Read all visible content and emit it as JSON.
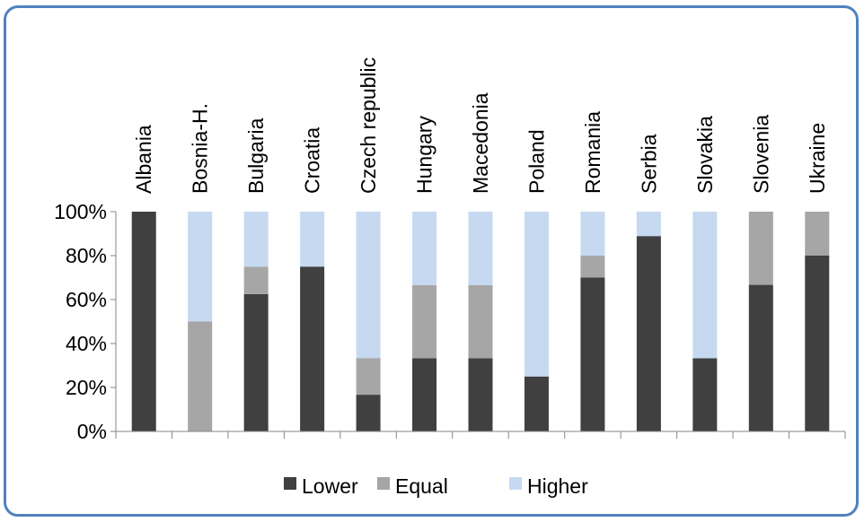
{
  "chart_data": {
    "type": "bar",
    "stacked": true,
    "percent": true,
    "categories": [
      "Albania",
      "Bosnia-H.",
      "Bulgaria",
      "Croatia",
      "Czech republic",
      "Hungary",
      "Macedonia",
      "Poland",
      "Romania",
      "Serbia",
      "Slovakia",
      "Slovenia",
      "Ukraine"
    ],
    "series": [
      {
        "name": "Lower",
        "color": "#404040",
        "values": [
          100,
          0,
          62.5,
          75,
          16.7,
          33.3,
          33.3,
          25,
          70,
          88.9,
          33.3,
          66.7,
          80
        ]
      },
      {
        "name": "Equal",
        "color": "#a6a6a6",
        "values": [
          0,
          50,
          12.5,
          0,
          16.7,
          33.3,
          33.3,
          0,
          10,
          0,
          0,
          33.3,
          20
        ]
      },
      {
        "name": "Higher",
        "color": "#c6d9f1",
        "values": [
          0,
          50,
          25,
          25,
          66.6,
          33.4,
          33.4,
          75,
          20,
          11.1,
          66.7,
          0,
          0
        ]
      }
    ],
    "ylim": [
      0,
      100
    ],
    "yticks": [
      "0%",
      "20%",
      "40%",
      "60%",
      "80%",
      "100%"
    ],
    "x_labels_position": "top-rotated",
    "legend": "bottom",
    "grid": false
  }
}
